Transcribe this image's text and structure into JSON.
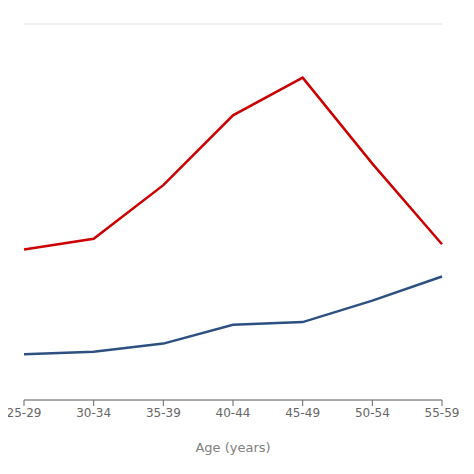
{
  "chart_data": {
    "type": "line",
    "categories": [
      "25-29",
      "30-34",
      "35-39",
      "40-44",
      "45-49",
      "50-54",
      "55-59"
    ],
    "series": [
      {
        "color": "#cc0000",
        "values": [
          28,
          30,
          40,
          53,
          60,
          44,
          29
        ]
      },
      {
        "color": "#2d5080",
        "values": [
          8.5,
          9,
          10.5,
          14,
          14.5,
          18.5,
          23
        ]
      }
    ],
    "xlabel": "Age (years)",
    "ylim": [
      0,
      70
    ],
    "yticks": [
      0,
      10,
      20,
      30,
      40,
      50,
      60,
      70
    ],
    "grid": true,
    "tick_labels": "x"
  }
}
